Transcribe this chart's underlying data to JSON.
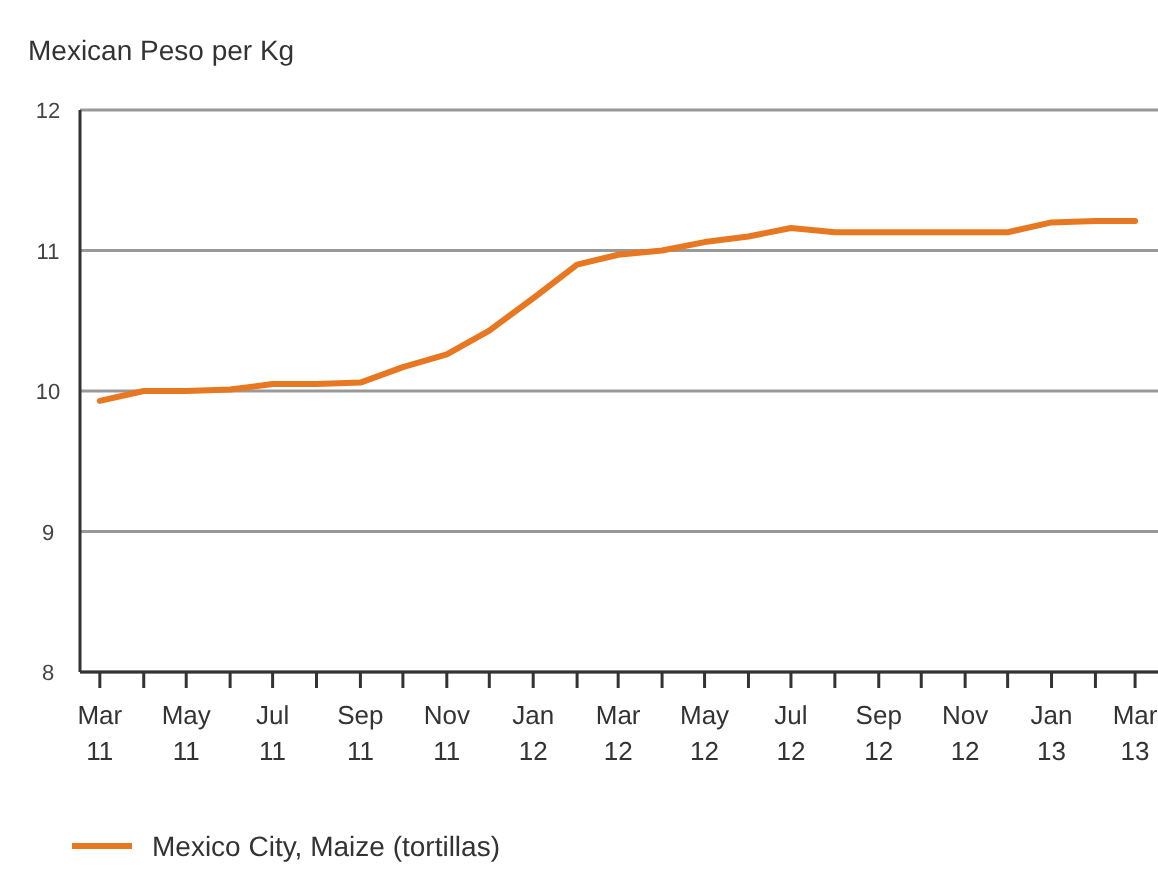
{
  "chart_data": {
    "type": "line",
    "title": "Mexican Peso per Kg",
    "x": [
      "2011-03",
      "2011-04",
      "2011-05",
      "2011-06",
      "2011-07",
      "2011-08",
      "2011-09",
      "2011-10",
      "2011-11",
      "2011-12",
      "2012-01",
      "2012-02",
      "2012-03",
      "2012-04",
      "2012-05",
      "2012-06",
      "2012-07",
      "2012-08",
      "2012-09",
      "2012-10",
      "2012-11",
      "2012-12",
      "2013-01",
      "2013-02",
      "2013-03"
    ],
    "series": [
      {
        "name": "Mexico City, Maize (tortillas)",
        "color": "#e87722",
        "values": [
          9.93,
          10.0,
          10.0,
          10.01,
          10.05,
          10.05,
          10.06,
          10.17,
          10.26,
          10.43,
          10.66,
          10.9,
          10.97,
          11.0,
          11.06,
          11.1,
          11.16,
          11.13,
          11.13,
          11.13,
          11.13,
          11.13,
          11.2,
          11.21,
          11.21
        ]
      }
    ],
    "xlim": [
      "2011-02-15",
      "2013-03-20"
    ],
    "xticks": [
      {
        "value": "2011-03",
        "label": "Mar 11"
      },
      {
        "value": "2011-04",
        "label": null
      },
      {
        "value": "2011-05",
        "label": "May 11"
      },
      {
        "value": "2011-06",
        "label": null
      },
      {
        "value": "2011-07",
        "label": "Jul 11"
      },
      {
        "value": "2011-08",
        "label": null
      },
      {
        "value": "2011-09",
        "label": "Sep 11"
      },
      {
        "value": "2011-10",
        "label": null
      },
      {
        "value": "2011-11",
        "label": "Nov 11"
      },
      {
        "value": "2011-12",
        "label": null
      },
      {
        "value": "2012-01",
        "label": "Jan 12"
      },
      {
        "value": "2012-02",
        "label": null
      },
      {
        "value": "2012-03",
        "label": "Mar 12"
      },
      {
        "value": "2012-04",
        "label": null
      },
      {
        "value": "2012-05",
        "label": "May 12"
      },
      {
        "value": "2012-06",
        "label": null
      },
      {
        "value": "2012-07",
        "label": "Jul 12"
      },
      {
        "value": "2012-08",
        "label": null
      },
      {
        "value": "2012-09",
        "label": "Sep 12"
      },
      {
        "value": "2012-10",
        "label": null
      },
      {
        "value": "2012-11",
        "label": "Nov 12"
      },
      {
        "value": "2012-12",
        "label": null
      },
      {
        "value": "2013-01",
        "label": "Jan 13"
      },
      {
        "value": "2013-02",
        "label": null
      },
      {
        "value": "2013-03",
        "label": "Mar 13"
      }
    ],
    "ylim": [
      8,
      12
    ],
    "yticks": [
      8,
      9,
      10,
      11,
      12
    ],
    "grid": "y",
    "legend": "bottom left"
  }
}
